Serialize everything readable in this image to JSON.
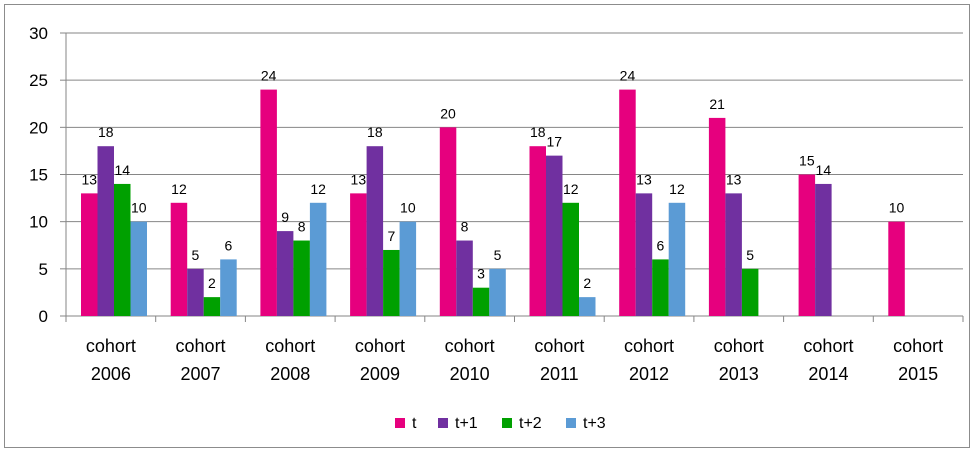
{
  "chart_data": {
    "type": "bar",
    "categories": [
      [
        "cohort",
        "2006"
      ],
      [
        "cohort",
        "2007"
      ],
      [
        "cohort",
        "2008"
      ],
      [
        "cohort",
        "2009"
      ],
      [
        "cohort",
        "2010"
      ],
      [
        "cohort",
        "2011"
      ],
      [
        "cohort",
        "2012"
      ],
      [
        "cohort",
        "2013"
      ],
      [
        "cohort",
        "2014"
      ],
      [
        "cohort",
        "2015"
      ]
    ],
    "series": [
      {
        "name": "t",
        "color": "#e6007e",
        "values": [
          13,
          12,
          24,
          13,
          20,
          18,
          24,
          21,
          15,
          10
        ]
      },
      {
        "name": "t+1",
        "color": "#7030a0",
        "values": [
          18,
          5,
          9,
          18,
          8,
          17,
          13,
          13,
          14,
          null
        ]
      },
      {
        "name": "t+2",
        "color": "#00a000",
        "values": [
          14,
          2,
          8,
          7,
          3,
          12,
          6,
          5,
          null,
          null
        ]
      },
      {
        "name": "t+3",
        "color": "#5b9bd5",
        "values": [
          10,
          6,
          12,
          10,
          5,
          2,
          12,
          null,
          null,
          null
        ]
      }
    ],
    "ylim": [
      0,
      30
    ],
    "yticks": [
      0,
      5,
      10,
      15,
      20,
      25,
      30
    ],
    "grid": true,
    "legend": "bottom",
    "title": "",
    "xlabel": "",
    "ylabel": ""
  }
}
